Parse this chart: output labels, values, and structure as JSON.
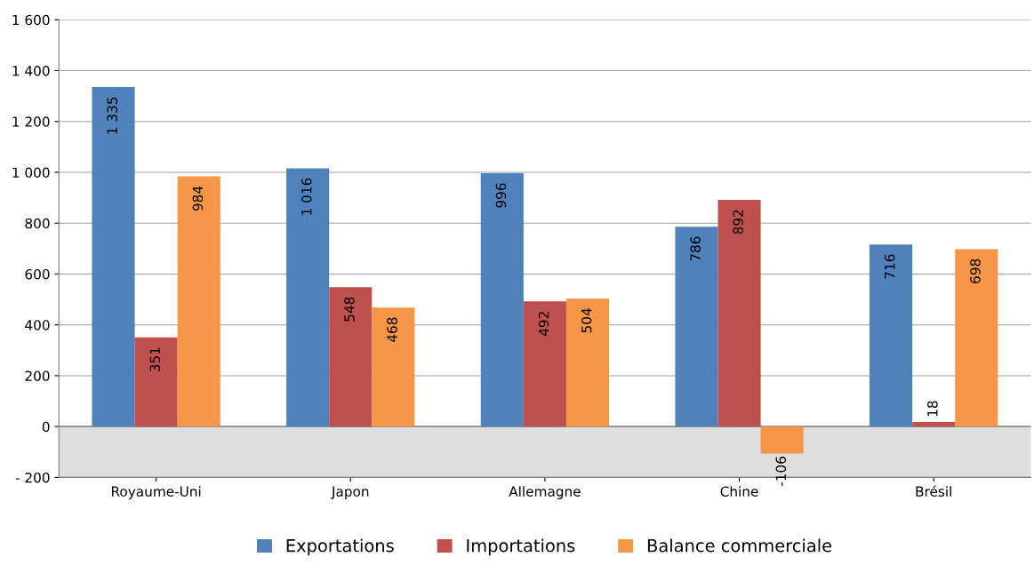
{
  "chart_data": {
    "type": "bar",
    "categories": [
      "Royaume-Uni",
      "Japon",
      "Allemagne",
      "Chine",
      "Brésil"
    ],
    "series": [
      {
        "name": "Exportations",
        "color": "#4f81bd",
        "values": [
          1335,
          1016,
          996,
          786,
          716
        ],
        "value_labels": [
          "1 335",
          "1 016",
          "996",
          "786",
          "716"
        ]
      },
      {
        "name": "Importations",
        "color": "#c0504d",
        "values": [
          351,
          548,
          492,
          892,
          18
        ],
        "value_labels": [
          "351",
          "548",
          "492",
          "892",
          "18"
        ]
      },
      {
        "name": "Balance commerciale",
        "color": "#f79646",
        "values": [
          984,
          468,
          504,
          -106,
          698
        ],
        "value_labels": [
          "984",
          "468",
          "504",
          "-106",
          "698"
        ]
      }
    ],
    "ylim": [
      -200,
      1600
    ],
    "yticks": [
      {
        "value": -200,
        "label": "- 200"
      },
      0,
      200,
      400,
      600,
      800,
      {
        "value": 1000,
        "label": "1 000"
      },
      {
        "value": 1200,
        "label": "1 200"
      },
      {
        "value": 1400,
        "label": "1 400"
      },
      {
        "value": 1600,
        "label": "1 600"
      }
    ],
    "bands": [
      {
        "axis": "y",
        "from": -200,
        "to": 0,
        "color": "#dedede"
      }
    ],
    "grid": "y",
    "legend": "bottom"
  }
}
